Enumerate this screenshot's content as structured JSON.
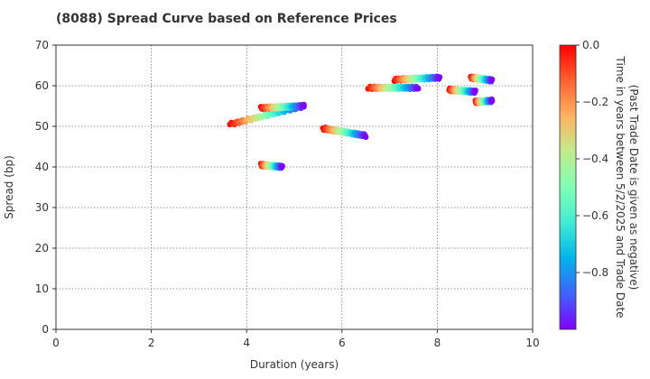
{
  "chart_data": {
    "type": "scatter",
    "title": "(8088)   Spread Curve based on Reference Prices",
    "xlabel": "Duration (years)",
    "ylabel": "Spread (bp)",
    "xlim": [
      0,
      10
    ],
    "ylim": [
      0,
      70
    ],
    "xticks": [
      0,
      2,
      4,
      6,
      8,
      10
    ],
    "yticks": [
      0,
      10,
      20,
      30,
      40,
      50,
      60,
      70
    ],
    "grid": true,
    "colorbar": {
      "label_line1": "Time in years between 5/2/2025 and Trade Date",
      "label_line2": "(Past Trade Date is given as negative)",
      "range": [
        -1.0,
        0.0
      ],
      "ticks": [
        0.0,
        -0.2,
        -0.4,
        -0.6,
        -0.8
      ],
      "tick_labels": [
        "0.0",
        "−0.2",
        "−0.4",
        "−0.6",
        "−0.8"
      ],
      "colormap": "rainbow"
    },
    "bonds": [
      {
        "x_start": 3.65,
        "x_end": 5.2,
        "y_start": 50.5,
        "y_end": 55.0
      },
      {
        "x_start": 4.3,
        "x_end": 4.75,
        "y_start": 40.5,
        "y_end": 40.0
      },
      {
        "x_start": 4.3,
        "x_end": 5.2,
        "y_start": 54.5,
        "y_end": 55.0
      },
      {
        "x_start": 5.6,
        "x_end": 6.5,
        "y_start": 49.5,
        "y_end": 47.7
      },
      {
        "x_start": 6.55,
        "x_end": 7.6,
        "y_start": 59.5,
        "y_end": 59.5
      },
      {
        "x_start": 7.1,
        "x_end": 8.05,
        "y_start": 61.5,
        "y_end": 62.0
      },
      {
        "x_start": 8.25,
        "x_end": 8.8,
        "y_start": 59.0,
        "y_end": 58.5
      },
      {
        "x_start": 8.7,
        "x_end": 9.15,
        "y_start": 62.0,
        "y_end": 61.3
      },
      {
        "x_start": 8.8,
        "x_end": 9.15,
        "y_start": 56.0,
        "y_end": 56.3
      }
    ]
  }
}
